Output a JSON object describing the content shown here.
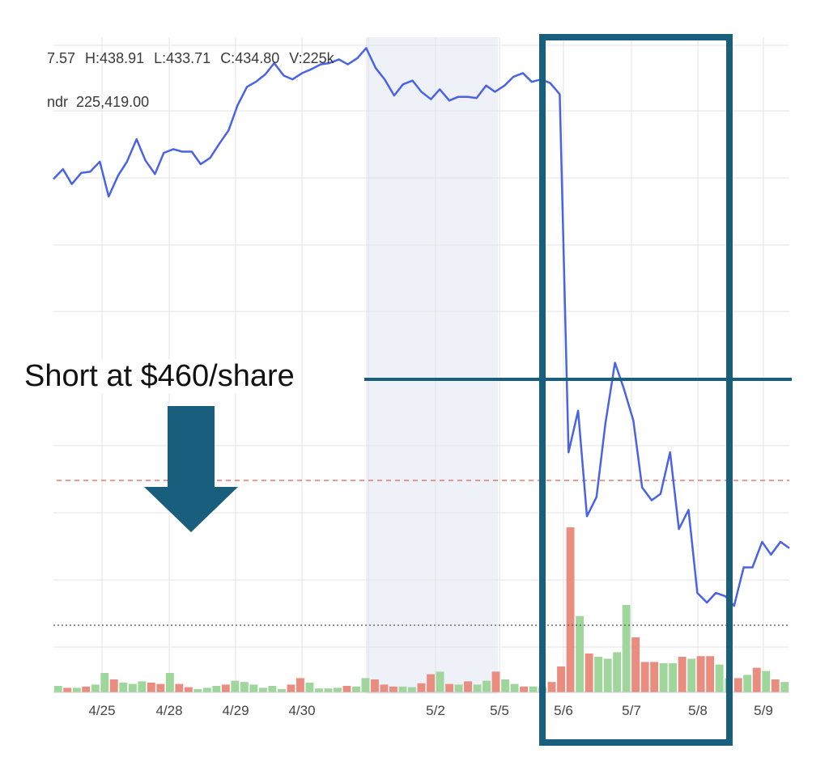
{
  "chart_data": {
    "type": "line",
    "readout": {
      "open_fragment": "7.57",
      "high": "H:438.91",
      "low": "L:433.71",
      "close": "C:434.80",
      "volume": "V:225k",
      "volume_label_fragment": "ndr",
      "volume_value": "225,419.00"
    },
    "x_tick_labels": [
      "4/25",
      "4/28",
      "4/29",
      "4/30",
      "5/2",
      "5/5",
      "5/6",
      "5/7",
      "5/8",
      "5/9"
    ],
    "annotation": {
      "text": "Short at $460/share",
      "price": 460
    },
    "price_series": [
      [
        0.0,
        433.4
      ],
      [
        1.3,
        434.2
      ],
      [
        2.5,
        433.0
      ],
      [
        3.8,
        433.9
      ],
      [
        5.0,
        434.0
      ],
      [
        6.3,
        434.8
      ],
      [
        7.5,
        432.0
      ],
      [
        8.8,
        433.7
      ],
      [
        10.0,
        434.8
      ],
      [
        11.3,
        436.6
      ],
      [
        12.5,
        434.9
      ],
      [
        13.8,
        433.8
      ],
      [
        15.0,
        435.5
      ],
      [
        16.3,
        435.8
      ],
      [
        17.5,
        435.6
      ],
      [
        18.8,
        435.6
      ],
      [
        20.0,
        434.6
      ],
      [
        21.3,
        435.1
      ],
      [
        22.5,
        436.2
      ],
      [
        23.8,
        437.3
      ],
      [
        25.0,
        439.3
      ],
      [
        26.3,
        440.8
      ],
      [
        27.5,
        441.2
      ],
      [
        28.8,
        441.8
      ],
      [
        30.0,
        442.7
      ],
      [
        31.3,
        441.7
      ],
      [
        32.5,
        441.4
      ],
      [
        33.8,
        441.9
      ],
      [
        35.0,
        442.2
      ],
      [
        36.3,
        442.6
      ],
      [
        37.5,
        442.7
      ],
      [
        38.8,
        443.0
      ],
      [
        40.0,
        442.6
      ],
      [
        41.3,
        443.1
      ],
      [
        42.5,
        443.9
      ],
      [
        43.8,
        442.3
      ],
      [
        45.0,
        441.4
      ],
      [
        46.3,
        440.1
      ],
      [
        47.5,
        441.0
      ],
      [
        48.8,
        441.3
      ],
      [
        50.0,
        440.4
      ],
      [
        51.3,
        439.8
      ],
      [
        52.5,
        440.6
      ],
      [
        53.8,
        439.7
      ],
      [
        55.0,
        440.0
      ],
      [
        56.3,
        440.0
      ],
      [
        57.5,
        439.9
      ],
      [
        58.8,
        440.9
      ],
      [
        60.0,
        440.4
      ],
      [
        61.3,
        440.9
      ],
      [
        62.5,
        441.6
      ],
      [
        63.8,
        441.9
      ],
      [
        65.0,
        441.2
      ],
      [
        66.3,
        441.4
      ],
      [
        67.5,
        441.1
      ],
      [
        68.8,
        440.2
      ],
      [
        70.0,
        424.0
      ],
      [
        71.3,
        425.3
      ],
      [
        72.5,
        422.0
      ],
      [
        73.8,
        422.6
      ],
      [
        75.0,
        424.9
      ],
      [
        76.3,
        426.8
      ],
      [
        77.5,
        426.0
      ],
      [
        78.8,
        425.0
      ],
      [
        80.0,
        422.9
      ],
      [
        81.3,
        422.5
      ],
      [
        82.5,
        422.7
      ],
      [
        83.8,
        424.0
      ],
      [
        85.0,
        421.6
      ],
      [
        86.3,
        422.2
      ],
      [
        87.5,
        419.6
      ],
      [
        88.8,
        419.3
      ],
      [
        90.0,
        419.6
      ],
      [
        91.3,
        419.5
      ],
      [
        92.5,
        419.2
      ],
      [
        93.8,
        420.4
      ],
      [
        95.0,
        420.4
      ],
      [
        96.3,
        421.2
      ],
      [
        97.5,
        420.8
      ],
      [
        98.8,
        421.2
      ],
      [
        100.0,
        421.0
      ]
    ],
    "volume_bars": [
      {
        "v": 0.1,
        "c": "up"
      },
      {
        "v": 0.07,
        "c": "down"
      },
      {
        "v": 0.07,
        "c": "up"
      },
      {
        "v": 0.09,
        "c": "down"
      },
      {
        "v": 0.12,
        "c": "up"
      },
      {
        "v": 0.3,
        "c": "up"
      },
      {
        "v": 0.2,
        "c": "down"
      },
      {
        "v": 0.15,
        "c": "up"
      },
      {
        "v": 0.13,
        "c": "up"
      },
      {
        "v": 0.17,
        "c": "up"
      },
      {
        "v": 0.15,
        "c": "down"
      },
      {
        "v": 0.13,
        "c": "down"
      },
      {
        "v": 0.3,
        "c": "up"
      },
      {
        "v": 0.13,
        "c": "down"
      },
      {
        "v": 0.08,
        "c": "down"
      },
      {
        "v": 0.05,
        "c": "up"
      },
      {
        "v": 0.07,
        "c": "up"
      },
      {
        "v": 0.1,
        "c": "up"
      },
      {
        "v": 0.12,
        "c": "down"
      },
      {
        "v": 0.18,
        "c": "up"
      },
      {
        "v": 0.16,
        "c": "up"
      },
      {
        "v": 0.12,
        "c": "up"
      },
      {
        "v": 0.07,
        "c": "up"
      },
      {
        "v": 0.1,
        "c": "up"
      },
      {
        "v": 0.05,
        "c": "up"
      },
      {
        "v": 0.12,
        "c": "down"
      },
      {
        "v": 0.22,
        "c": "down"
      },
      {
        "v": 0.15,
        "c": "up"
      },
      {
        "v": 0.06,
        "c": "up"
      },
      {
        "v": 0.06,
        "c": "up"
      },
      {
        "v": 0.07,
        "c": "up"
      },
      {
        "v": 0.1,
        "c": "down"
      },
      {
        "v": 0.09,
        "c": "up"
      },
      {
        "v": 0.22,
        "c": "up"
      },
      {
        "v": 0.2,
        "c": "down"
      },
      {
        "v": 0.12,
        "c": "down"
      },
      {
        "v": 0.09,
        "c": "down"
      },
      {
        "v": 0.09,
        "c": "up"
      },
      {
        "v": 0.08,
        "c": "up"
      },
      {
        "v": 0.14,
        "c": "down"
      },
      {
        "v": 0.28,
        "c": "down"
      },
      {
        "v": 0.32,
        "c": "up"
      },
      {
        "v": 0.13,
        "c": "down"
      },
      {
        "v": 0.12,
        "c": "up"
      },
      {
        "v": 0.17,
        "c": "down"
      },
      {
        "v": 0.12,
        "c": "up"
      },
      {
        "v": 0.18,
        "c": "up"
      },
      {
        "v": 0.32,
        "c": "down"
      },
      {
        "v": 0.2,
        "c": "up"
      },
      {
        "v": 0.13,
        "c": "up"
      },
      {
        "v": 0.09,
        "c": "down"
      },
      {
        "v": 0.09,
        "c": "up"
      },
      {
        "v": 0.08,
        "c": "up"
      },
      {
        "v": 0.16,
        "c": "down"
      },
      {
        "v": 0.4,
        "c": "down"
      },
      {
        "v": 2.55,
        "c": "down"
      },
      {
        "v": 1.18,
        "c": "up"
      },
      {
        "v": 0.6,
        "c": "down"
      },
      {
        "v": 0.55,
        "c": "up"
      },
      {
        "v": 0.52,
        "c": "up"
      },
      {
        "v": 0.62,
        "c": "up"
      },
      {
        "v": 1.35,
        "c": "up"
      },
      {
        "v": 0.85,
        "c": "down"
      },
      {
        "v": 0.47,
        "c": "down"
      },
      {
        "v": 0.47,
        "c": "down"
      },
      {
        "v": 0.45,
        "c": "up"
      },
      {
        "v": 0.45,
        "c": "up"
      },
      {
        "v": 0.55,
        "c": "down"
      },
      {
        "v": 0.52,
        "c": "up"
      },
      {
        "v": 0.56,
        "c": "down"
      },
      {
        "v": 0.56,
        "c": "down"
      },
      {
        "v": 0.43,
        "c": "up"
      },
      {
        "v": 0.22,
        "c": "up"
      },
      {
        "v": 0.22,
        "c": "down"
      },
      {
        "v": 0.27,
        "c": "up"
      },
      {
        "v": 0.38,
        "c": "down"
      },
      {
        "v": 0.33,
        "c": "up"
      },
      {
        "v": 0.2,
        "c": "down"
      },
      {
        "v": 0.16,
        "c": "up"
      }
    ],
    "colors": {
      "price_line": "#4a63e6",
      "volume_up": "#9fd69b",
      "volume_down": "#e98d80",
      "highlight_box": "#1a5e7e",
      "arrow": "#1a5e7e",
      "annotation_line": "#1a5e7e",
      "dashed_ref_line": "#e07b72",
      "dotted_ref_line": "#555555",
      "shaded_region": "#eef1f8",
      "grid": "#e3e3e3"
    }
  }
}
